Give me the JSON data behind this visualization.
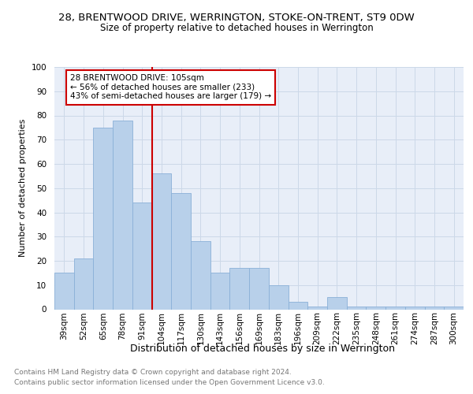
{
  "title": "28, BRENTWOOD DRIVE, WERRINGTON, STOKE-ON-TRENT, ST9 0DW",
  "subtitle": "Size of property relative to detached houses in Werrington",
  "xlabel": "Distribution of detached houses by size in Werrington",
  "ylabel": "Number of detached properties",
  "categories": [
    "39sqm",
    "52sqm",
    "65sqm",
    "78sqm",
    "91sqm",
    "104sqm",
    "117sqm",
    "130sqm",
    "143sqm",
    "156sqm",
    "169sqm",
    "183sqm",
    "196sqm",
    "209sqm",
    "222sqm",
    "235sqm",
    "248sqm",
    "261sqm",
    "274sqm",
    "287sqm",
    "300sqm"
  ],
  "values": [
    15,
    21,
    75,
    78,
    44,
    56,
    48,
    28,
    15,
    17,
    17,
    10,
    3,
    1,
    5,
    1,
    1,
    1,
    1,
    1,
    1
  ],
  "bar_color": "#b8d0ea",
  "bar_edge_color": "#8ab0d8",
  "vline_color": "#cc0000",
  "annotation_text": "28 BRENTWOOD DRIVE: 105sqm\n← 56% of detached houses are smaller (233)\n43% of semi-detached houses are larger (179) →",
  "annotation_box_color": "#ffffff",
  "annotation_box_edge": "#cc0000",
  "ylim": [
    0,
    100
  ],
  "yticks": [
    0,
    10,
    20,
    30,
    40,
    50,
    60,
    70,
    80,
    90,
    100
  ],
  "grid_color": "#ccd8e8",
  "background_color": "#e8eef8",
  "footer_line1": "Contains HM Land Registry data © Crown copyright and database right 2024.",
  "footer_line2": "Contains public sector information licensed under the Open Government Licence v3.0.",
  "title_fontsize": 9.5,
  "subtitle_fontsize": 8.5,
  "xlabel_fontsize": 9,
  "ylabel_fontsize": 8,
  "tick_fontsize": 7.5,
  "annot_fontsize": 7.5,
  "footer_fontsize": 6.5
}
